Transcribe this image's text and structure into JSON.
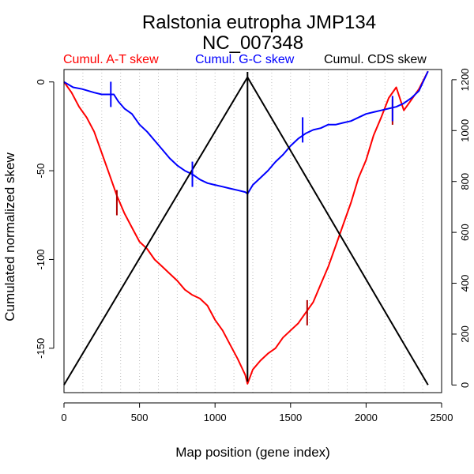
{
  "chart_data": {
    "type": "line",
    "title": "Ralstonia eutropha JMP134",
    "subtitle": "NC_007348",
    "xlabel": "Map position (gene index)",
    "ylabel": "Cumulated normalized skew",
    "xlim": [
      0,
      2500
    ],
    "ylim_left": [
      -175,
      7
    ],
    "ylim_right": [
      -30,
      1240
    ],
    "x_ticks": [
      "0",
      "500",
      "1000",
      "1500",
      "2000",
      "2500"
    ],
    "y_ticks_left": [
      "0",
      "-50",
      "-100",
      "-150"
    ],
    "y_ticks_right": [
      "0",
      "200",
      "400",
      "600",
      "800",
      "1000",
      "1200"
    ],
    "grid": "vertical-dotted",
    "legend_position": "top",
    "colors": {
      "at": "#ff0000",
      "gc": "#0000ff",
      "cds": "#000000",
      "grid": "#bebebe"
    },
    "series": [
      {
        "name": "Cumul. A-T skew",
        "color": "#ff0000",
        "axis": "left",
        "points": [
          [
            0,
            0
          ],
          [
            50,
            -6
          ],
          [
            100,
            -14
          ],
          [
            150,
            -20
          ],
          [
            200,
            -28
          ],
          [
            250,
            -40
          ],
          [
            300,
            -52
          ],
          [
            350,
            -64
          ],
          [
            400,
            -74
          ],
          [
            450,
            -82
          ],
          [
            500,
            -90
          ],
          [
            550,
            -94
          ],
          [
            600,
            -100
          ],
          [
            650,
            -104
          ],
          [
            700,
            -108
          ],
          [
            750,
            -112
          ],
          [
            800,
            -117
          ],
          [
            850,
            -120
          ],
          [
            900,
            -122
          ],
          [
            950,
            -126
          ],
          [
            1000,
            -134
          ],
          [
            1050,
            -140
          ],
          [
            1100,
            -148
          ],
          [
            1150,
            -156
          ],
          [
            1200,
            -165
          ],
          [
            1215,
            -170
          ],
          [
            1250,
            -162
          ],
          [
            1300,
            -157
          ],
          [
            1350,
            -153
          ],
          [
            1400,
            -150
          ],
          [
            1450,
            -144
          ],
          [
            1500,
            -140
          ],
          [
            1550,
            -136
          ],
          [
            1600,
            -130
          ],
          [
            1650,
            -124
          ],
          [
            1700,
            -114
          ],
          [
            1750,
            -104
          ],
          [
            1800,
            -92
          ],
          [
            1850,
            -80
          ],
          [
            1900,
            -68
          ],
          [
            1950,
            -54
          ],
          [
            2000,
            -44
          ],
          [
            2050,
            -30
          ],
          [
            2100,
            -20
          ],
          [
            2150,
            -9
          ],
          [
            2200,
            -3
          ],
          [
            2250,
            -16
          ],
          [
            2300,
            -10
          ],
          [
            2350,
            -4
          ],
          [
            2410,
            6
          ]
        ]
      },
      {
        "name": "Cumul. G-C skew",
        "color": "#0000ff",
        "axis": "left",
        "points": [
          [
            0,
            0
          ],
          [
            60,
            -3
          ],
          [
            120,
            -4
          ],
          [
            200,
            -6
          ],
          [
            250,
            -7
          ],
          [
            300,
            -7
          ],
          [
            330,
            -7
          ],
          [
            360,
            -11
          ],
          [
            400,
            -15
          ],
          [
            450,
            -18
          ],
          [
            500,
            -24
          ],
          [
            550,
            -28
          ],
          [
            600,
            -33
          ],
          [
            650,
            -38
          ],
          [
            700,
            -43
          ],
          [
            750,
            -47
          ],
          [
            800,
            -50
          ],
          [
            850,
            -52
          ],
          [
            900,
            -55
          ],
          [
            950,
            -57
          ],
          [
            1000,
            -58
          ],
          [
            1050,
            -59
          ],
          [
            1100,
            -60
          ],
          [
            1150,
            -61
          ],
          [
            1200,
            -62
          ],
          [
            1215,
            -63
          ],
          [
            1250,
            -58
          ],
          [
            1300,
            -54
          ],
          [
            1350,
            -50
          ],
          [
            1400,
            -45
          ],
          [
            1450,
            -41
          ],
          [
            1500,
            -36
          ],
          [
            1550,
            -32
          ],
          [
            1600,
            -29
          ],
          [
            1650,
            -27
          ],
          [
            1700,
            -26
          ],
          [
            1750,
            -24
          ],
          [
            1800,
            -24
          ],
          [
            1850,
            -23
          ],
          [
            1900,
            -22
          ],
          [
            1950,
            -20
          ],
          [
            2000,
            -18
          ],
          [
            2050,
            -17
          ],
          [
            2100,
            -16
          ],
          [
            2150,
            -15
          ],
          [
            2200,
            -14
          ],
          [
            2250,
            -12
          ],
          [
            2300,
            -9
          ],
          [
            2350,
            -5
          ],
          [
            2410,
            6
          ]
        ]
      },
      {
        "name": "Cumul. CDS skew",
        "color": "#000000",
        "axis": "right",
        "points": [
          [
            0,
            0
          ],
          [
            1215,
            1210
          ],
          [
            2410,
            0
          ]
        ]
      }
    ],
    "markers": [
      {
        "series": "Cumul. A-T skew",
        "x": 350,
        "y": -68
      },
      {
        "series": "Cumul. A-T skew",
        "x": 1610,
        "y": -130
      },
      {
        "series": "Cumul. A-T skew",
        "x": 2175,
        "y": -17
      },
      {
        "series": "Cumul. G-C skew",
        "x": 310,
        "y": -7
      },
      {
        "series": "Cumul. G-C skew",
        "x": 850,
        "y": -52
      },
      {
        "series": "Cumul. G-C skew",
        "x": 1580,
        "y": -27
      },
      {
        "series": "Cumul. G-C skew",
        "x": 2175,
        "y": -15
      },
      {
        "series": "Cumul. CDS skew",
        "x": 1215,
        "y": 1210
      }
    ]
  }
}
